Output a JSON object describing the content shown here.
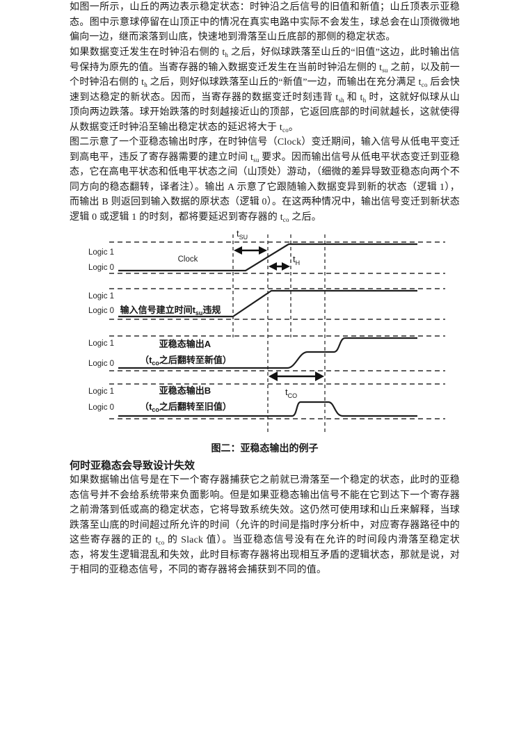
{
  "page": {
    "background": "#ffffff",
    "text_color": "#1b1b1b"
  },
  "heading": "何时亚稳态会导致设计失效",
  "paragraphs": {
    "p1": [
      {
        "t": "如图一所示，山丘的两边表示稳定状态：时钟沿之后信号的旧值和新值；山丘顶表示亚稳态。图中示意球停留在山顶正中的情况在真实电路中实际不会发生，球总会在山顶微微地偏向一边，继而滚落到山底，快速地到滑落至山丘底部的那侧的稳定状态。"
      }
    ],
    "p2": [
      {
        "t": "如果数据变迁发生在时钟沿右侧的 t"
      },
      {
        "sub": "h"
      },
      {
        "t": " 之后，好似球跌落至山丘的“旧值”这边，此时输出信号保持为原先的值。当寄存器的输入数据变迁发生在当前时钟沿左侧的 t"
      },
      {
        "sub": "su"
      },
      {
        "t": " 之前，以及前一个时钟沿右侧的 t"
      },
      {
        "sub": "h"
      },
      {
        "t": " 之后，则好似球跌落至山丘的“新值”一边，而输出在充分满足 t"
      },
      {
        "sub": "co"
      },
      {
        "t": " 后会快速到达稳定的新状态。因而，当寄存器的数据变迁时刻违背 t"
      },
      {
        "sub": "sh"
      },
      {
        "t": " 和 t"
      },
      {
        "sub": "h"
      },
      {
        "t": " 时，这就好似球从山顶向两边跌落。球开始跌落的时刻越接近山的顶部，它返回底部的时间就越长，这就使得从数据变迁时钟沿至输出稳定状态的延迟将大于 t"
      },
      {
        "sub": "co"
      },
      {
        "t": "。"
      }
    ],
    "p3": [
      {
        "t": "图二示意了一个亚稳态输出时序，在时钟信号（Clock）变迁期间，输入信号从低电平变迁到高电平，违反了寄存器需要的建立时间 t"
      },
      {
        "sub": "su"
      },
      {
        "t": " 要求。因而输出信号从低电平状态变迁到亚稳态，它在高电平状态和低电平状态之间（山顶处）游动，（细微的差异导致亚稳态向两个不同方向的稳态翻转，译者注）。输出 A 示意了它跟随输入数据变异到新的状态（逻辑 1），而输出 B 则返回到输入数据的原状态（逻辑 0）。在这两种情况中，输出信号变迁到新状态逻辑 0 或逻辑 1 的时刻，都将要延迟到寄存器的 t"
      },
      {
        "sub": "co"
      },
      {
        "t": " 之后。"
      }
    ],
    "p4": [
      {
        "t": "如果数据输出信号是在下一个寄存器捕获它之前就已滑落至一个稳定的状态，此时的亚稳态信号并不会给系统带来负面影响。但是如果亚稳态输出信号不能在它到达下一个寄存器之前滑落到低或高的稳定状态，它将导致系统失效。这仍然可使用球和山丘来解释，当球跌落至山底的时间超过所允许的时间（允许的时间是指时序分析中，对应寄存器路径中的这些寄存器的正的 t"
      },
      {
        "sub": "co"
      },
      {
        "t": " 的 Slack 值）。当亚稳态信号没有在允许的时间段内滑落至稳定状态，将发生逻辑混乱和失效，此时目标寄存器将出现相互矛盾的逻辑状态，那就是说，对于相同的亚稳态信号，不同的寄存器将会捕获到不同的值。"
      }
    ]
  },
  "figure": {
    "caption": "图二：亚稳态输出的例子",
    "logic1": "Logic 1",
    "logic0": "Logic 0",
    "clock_label": "Clock",
    "input_label": [
      {
        "t": "输入信号建立时间t"
      },
      {
        "sub": "su"
      },
      {
        "t": "违规"
      }
    ],
    "outA_label1": "亚稳态输出A",
    "outA_label2": [
      {
        "t": "（t"
      },
      {
        "sub": "co"
      },
      {
        "t": "之后翻转至新值）"
      }
    ],
    "outB_label1": "亚稳态输出B",
    "outB_label2": [
      {
        "t": "（t"
      },
      {
        "sub": "co"
      },
      {
        "t": "之后翻转至旧值）"
      }
    ],
    "t_su": {
      "base": "t",
      "sub": "SU"
    },
    "t_h": {
      "base": "t",
      "sub": "H"
    },
    "t_co": {
      "base": "t",
      "sub": "CO"
    },
    "rows_semantics": [
      {
        "signal": "Clock",
        "behavior": "low to high transition at clock edge"
      },
      {
        "signal": "Input",
        "behavior": "rises during setup window, violating t_su"
      },
      {
        "signal": "Output A",
        "behavior": "metastable middle level, settles to new value (logic 1) after t_co"
      },
      {
        "signal": "Output B",
        "behavior": "metastable middle level, returns to old value (logic 0) after t_co"
      }
    ],
    "line_color": "#1f1f1f"
  }
}
